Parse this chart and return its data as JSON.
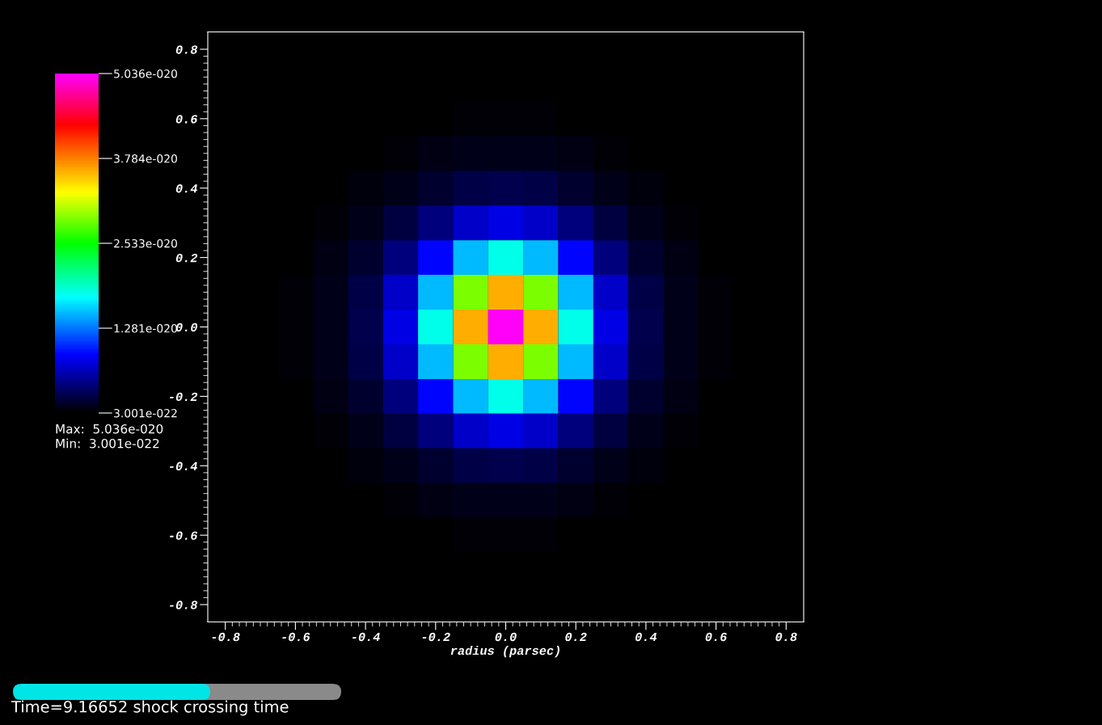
{
  "chart_data": {
    "type": "heatmap",
    "xlabel": "radius (parsec)",
    "categories": [
      "-0.8",
      null,
      "-0.6",
      null,
      "-0.4",
      null,
      "-0.2",
      null,
      "0.0",
      null,
      "0.2",
      null,
      "0.4",
      null,
      "0.6",
      null,
      "0.8"
    ],
    "y_categories": [
      "0.8",
      null,
      "0.6",
      null,
      "0.4",
      null,
      "0.2",
      null,
      "0.0",
      null,
      "-0.2",
      null,
      "-0.4",
      null,
      "-0.6",
      null,
      "-0.8"
    ],
    "clim": [
      3.001e-22,
      5.036e-20
    ],
    "cticks": [
      {
        "value": 3.001e-22,
        "label": "3.001e-022"
      },
      {
        "value": 1.281e-20,
        "label": "1.281e-020"
      },
      {
        "value": 2.533e-20,
        "label": "2.533e-020"
      },
      {
        "value": 3.784e-20,
        "label": "3.784e-020"
      },
      {
        "value": 5.036e-20,
        "label": "5.036e-020"
      }
    ],
    "annotations": [
      "Max:  5.036e-020",
      "Min:  3.001e-022",
      "Time=9.16652 shock crossing time"
    ],
    "grid": false,
    "cells": [
      [
        3.001e-22,
        3.001e-22,
        3.001e-22,
        3.001e-22,
        3.001e-22,
        3.001e-22,
        3.001e-22,
        3.001e-22,
        3.001e-22,
        3.001e-22,
        3.001e-22,
        3.001e-22,
        3.001e-22,
        3.001e-22,
        3.001e-22,
        3.001e-22,
        3.001e-22
      ],
      [
        3.001e-22,
        3.001e-22,
        3.001e-22,
        3.001e-22,
        3.001e-22,
        3.001e-22,
        3.001e-22,
        3.001e-22,
        3.001e-22,
        3.001e-22,
        3.001e-22,
        3.001e-22,
        3.001e-22,
        3.001e-22,
        3.001e-22,
        3.001e-22,
        3.001e-22
      ],
      [
        3.001e-22,
        3.001e-22,
        3.001e-22,
        3.001e-22,
        3.001e-22,
        3.5e-22,
        4e-22,
        5e-22,
        5e-22,
        5e-22,
        4e-22,
        3.5e-22,
        3.001e-22,
        3.001e-22,
        3.001e-22,
        3.001e-22,
        3.001e-22
      ],
      [
        3.001e-22,
        3.001e-22,
        3.001e-22,
        3.001e-22,
        4e-22,
        6e-22,
        9e-22,
        1.1e-21,
        1.2e-21,
        1.1e-21,
        9e-22,
        6e-22,
        4e-22,
        3.001e-22,
        3.001e-22,
        3.001e-22,
        3.001e-22
      ],
      [
        3.001e-22,
        3.001e-22,
        3.001e-22,
        4e-22,
        7e-22,
        1.2e-21,
        2e-21,
        2.8e-21,
        3e-21,
        2.8e-21,
        2e-21,
        1.2e-21,
        7e-22,
        4e-22,
        3.001e-22,
        3.001e-22,
        3.001e-22
      ],
      [
        3.001e-22,
        3.001e-22,
        3.5e-22,
        6e-22,
        1.2e-21,
        2.5e-21,
        4.5e-21,
        7e-21,
        8e-21,
        7e-21,
        4.5e-21,
        2.5e-21,
        1.2e-21,
        6e-22,
        3.5e-22,
        3.001e-22,
        3.001e-22
      ],
      [
        3.001e-22,
        3.001e-22,
        4e-22,
        9e-22,
        2e-21,
        4.5e-21,
        9e-21,
        1.5e-20,
        1.8e-20,
        1.5e-20,
        9e-21,
        4.5e-21,
        2e-21,
        9e-22,
        4e-22,
        3.001e-22,
        3.001e-22
      ],
      [
        3.001e-22,
        3.001e-22,
        5e-22,
        1.1e-21,
        2.8e-21,
        7e-21,
        1.5e-20,
        2.9e-20,
        3.6e-20,
        2.9e-20,
        1.5e-20,
        7e-21,
        2.8e-21,
        1.1e-21,
        5e-22,
        3.001e-22,
        3.001e-22
      ],
      [
        3.001e-22,
        3.001e-22,
        5e-22,
        1.2e-21,
        3e-21,
        8e-21,
        1.8e-20,
        3.6e-20,
        5e-20,
        3.6e-20,
        1.8e-20,
        8e-21,
        3e-21,
        1.2e-21,
        5e-22,
        3.001e-22,
        3.001e-22
      ],
      [
        3.001e-22,
        3.001e-22,
        5e-22,
        1.1e-21,
        2.8e-21,
        7e-21,
        1.5e-20,
        2.9e-20,
        3.6e-20,
        2.9e-20,
        1.5e-20,
        7e-21,
        2.8e-21,
        1.1e-21,
        5e-22,
        3.001e-22,
        3.001e-22
      ],
      [
        3.001e-22,
        3.001e-22,
        4e-22,
        9e-22,
        2e-21,
        4.5e-21,
        9e-21,
        1.5e-20,
        1.8e-20,
        1.5e-20,
        9e-21,
        4.5e-21,
        2e-21,
        9e-22,
        4e-22,
        3.001e-22,
        3.001e-22
      ],
      [
        3.001e-22,
        3.001e-22,
        3.5e-22,
        6e-22,
        1.2e-21,
        2.5e-21,
        4.5e-21,
        7e-21,
        8e-21,
        7e-21,
        4.5e-21,
        2.5e-21,
        1.2e-21,
        6e-22,
        3.5e-22,
        3.001e-22,
        3.001e-22
      ],
      [
        3.001e-22,
        3.001e-22,
        3.001e-22,
        4e-22,
        7e-22,
        1.2e-21,
        2e-21,
        2.8e-21,
        3e-21,
        2.8e-21,
        2e-21,
        1.2e-21,
        7e-22,
        4e-22,
        3.001e-22,
        3.001e-22,
        3.001e-22
      ],
      [
        3.001e-22,
        3.001e-22,
        3.001e-22,
        3.001e-22,
        4e-22,
        6e-22,
        9e-22,
        1.1e-21,
        1.2e-21,
        1.1e-21,
        9e-22,
        6e-22,
        4e-22,
        3.001e-22,
        3.001e-22,
        3.001e-22,
        3.001e-22
      ],
      [
        3.001e-22,
        3.001e-22,
        3.001e-22,
        3.001e-22,
        3.001e-22,
        3.5e-22,
        4e-22,
        5e-22,
        5e-22,
        5e-22,
        4e-22,
        3.5e-22,
        3.001e-22,
        3.001e-22,
        3.001e-22,
        3.001e-22,
        3.001e-22
      ],
      [
        3.001e-22,
        3.001e-22,
        3.001e-22,
        3.001e-22,
        3.001e-22,
        3.001e-22,
        3.001e-22,
        3.001e-22,
        3.001e-22,
        3.001e-22,
        3.001e-22,
        3.001e-22,
        3.001e-22,
        3.001e-22,
        3.001e-22,
        3.001e-22,
        3.001e-22
      ],
      [
        3.001e-22,
        3.001e-22,
        3.001e-22,
        3.001e-22,
        3.001e-22,
        3.001e-22,
        3.001e-22,
        3.001e-22,
        3.001e-22,
        3.001e-22,
        3.001e-22,
        3.001e-22,
        3.001e-22,
        3.001e-22,
        3.001e-22,
        3.001e-22,
        3.001e-22
      ]
    ]
  }
}
